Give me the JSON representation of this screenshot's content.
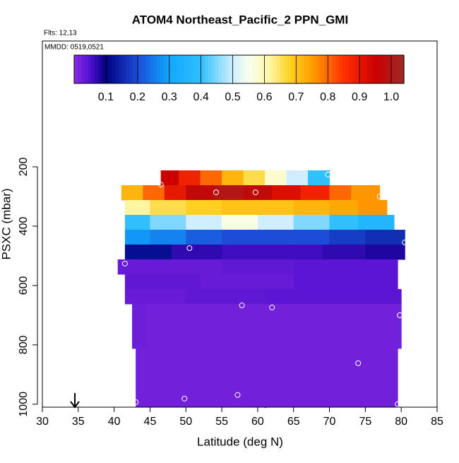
{
  "chart_data": {
    "type": "curtain",
    "title": "ATOM4 Northeast_Pacific_2 PPN_GMI",
    "subtitle": "Flts: 12,13",
    "annotation": "MMDD: 0519,0521",
    "x_label": "Latitude (deg N)",
    "y_label": "PSXC (mbar)",
    "xlim": [
      30,
      85
    ],
    "xticks": [
      30,
      35,
      40,
      45,
      50,
      55,
      60,
      65,
      70,
      75,
      80,
      85
    ],
    "ylim": [
      -224,
      1010
    ],
    "yticks": [
      200,
      400,
      600,
      800,
      1000
    ],
    "y_inverted": true,
    "colorbar_lim": [
      0,
      1.04
    ],
    "colorbar_ticks": [
      0.1,
      0.2,
      0.3,
      0.4,
      0.5,
      0.6,
      0.7,
      0.8,
      0.9,
      {
        "value": 1,
        "label": "1.0"
      }
    ],
    "colorscale": [
      [
        0,
        "#8a2be2"
      ],
      [
        0.05,
        "#5010d0"
      ],
      [
        0.1,
        "#000080"
      ],
      [
        0.2,
        "#1c4cd8"
      ],
      [
        0.3,
        "#10a8ff"
      ],
      [
        0.4,
        "#30c0ff"
      ],
      [
        0.5,
        "#d0eeff"
      ],
      [
        0.55,
        "#f8fff0"
      ],
      [
        0.62,
        "#fff5a0"
      ],
      [
        0.68,
        "#ffd020"
      ],
      [
        0.75,
        "#ffa000"
      ],
      [
        0.85,
        "#ff3000"
      ],
      [
        0.95,
        "#cc0000"
      ],
      [
        1.04,
        "#a02828"
      ]
    ],
    "layers": [
      {
        "p": [
          212,
          262
        ],
        "lat": [
          46.5,
          49,
          52,
          55,
          58,
          61,
          64,
          67,
          70
        ],
        "values": [
          0.95,
          0.88,
          0.8,
          0.72,
          0.66,
          0.58,
          0.5,
          0.4
        ]
      },
      {
        "p": [
          262,
          312
        ],
        "lat": [
          41,
          44,
          47,
          50,
          54,
          58,
          62,
          66,
          70,
          73,
          77
        ],
        "values": [
          0.72,
          0.8,
          0.9,
          0.97,
          1.0,
          0.97,
          0.92,
          0.88,
          0.8,
          0.76
        ]
      },
      {
        "p": [
          312,
          362
        ],
        "lat": [
          41.5,
          45,
          50,
          55,
          60,
          65,
          70,
          74,
          78
        ],
        "values": [
          0.62,
          0.66,
          0.68,
          0.7,
          0.7,
          0.72,
          0.74,
          0.76
        ]
      },
      {
        "p": [
          362,
          412
        ],
        "lat": [
          41.5,
          45,
          50,
          55,
          60,
          65,
          70,
          74,
          79
        ],
        "values": [
          0.4,
          0.45,
          0.5,
          0.56,
          0.5,
          0.45,
          0.4,
          0.36
        ]
      },
      {
        "p": [
          412,
          462
        ],
        "lat": [
          41.5,
          45,
          50,
          55,
          60,
          65,
          70,
          75,
          80.5
        ],
        "values": [
          0.28,
          0.26,
          0.22,
          0.2,
          0.2,
          0.2,
          0.18,
          0.16
        ]
      },
      {
        "p": [
          462,
          512
        ],
        "lat": [
          41.5,
          48,
          55,
          62,
          69,
          75,
          80.5
        ],
        "values": [
          0.12,
          0.07,
          0.06,
          0.06,
          0.07,
          0.08
        ]
      },
      {
        "p": [
          512,
          562
        ],
        "lat": [
          40.5,
          45,
          55,
          65,
          75,
          79.5
        ],
        "values": [
          0.03,
          0.03,
          0.035,
          0.04,
          0.04
        ]
      },
      {
        "p": [
          562,
          612
        ],
        "lat": [
          41.5,
          52,
          65,
          79.5
        ],
        "values": [
          0.035,
          0.03,
          0.04
        ]
      },
      {
        "p": [
          612,
          662
        ],
        "lat": [
          41.5,
          50,
          61,
          71,
          80
        ],
        "values": [
          0.03,
          0.035,
          0.04,
          0.04
        ]
      },
      {
        "p": [
          662,
          812
        ],
        "lat": [
          42.5,
          44.5,
          65,
          80
        ],
        "values": [
          0.025,
          0.02,
          0.02
        ]
      },
      {
        "p": [
          812,
          1010
        ],
        "lat": [
          43,
          79.5
        ],
        "values": [
          0.02
        ]
      }
    ],
    "flights": {
      "lat": [
        69.8,
        46.5,
        54.2,
        59.7,
        77,
        80.5,
        50.5,
        41.5,
        57.8,
        62,
        79.8,
        74,
        57.2,
        49.8,
        43,
        79.5
      ],
      "p": [
        226,
        260,
        286,
        286,
        300,
        455,
        474,
        526,
        667,
        674,
        700,
        862,
        969,
        981,
        993,
        1000
      ]
    }
  }
}
